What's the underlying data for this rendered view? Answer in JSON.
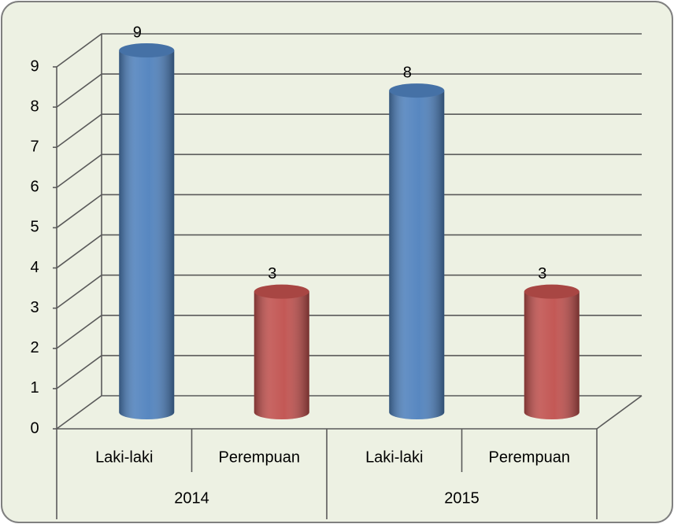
{
  "chart_data": {
    "type": "bar",
    "categories": [
      "Laki-laki",
      "Perempuan",
      "Laki-laki",
      "Perempuan"
    ],
    "groups": [
      "2014",
      "2015"
    ],
    "values": [
      9,
      3,
      8,
      3
    ],
    "colors": [
      "#4f81bd",
      "#c0504d",
      "#4f81bd",
      "#c0504d"
    ],
    "ylim": [
      0,
      9
    ],
    "yticks": [
      0,
      1,
      2,
      3,
      4,
      5,
      6,
      7,
      8,
      9
    ],
    "grid": true
  }
}
